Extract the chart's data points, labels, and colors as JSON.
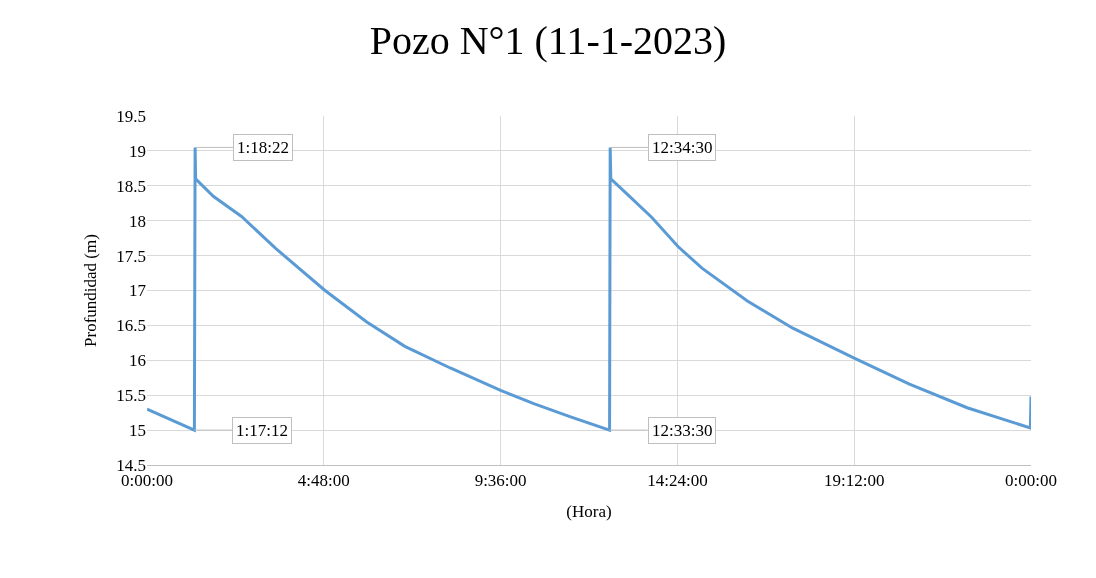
{
  "chart_data": {
    "type": "line",
    "title": "Pozo N°1 (11-1-2023)",
    "xlabel": "(Hora)",
    "ylabel": "Profundidad (m)",
    "series": [
      {
        "color": "#5b9bd5",
        "x": [
          "2023-01-11T00:00",
          "2023-01-11T01:17:12",
          "2023-01-11T01:18:22",
          "2023-01-11T01:19:12",
          "2023-01-11T01:48",
          "2023-01-11T02:34",
          "2023-01-11T03:30",
          "2023-01-11T04:50",
          "2023-01-11T05:58",
          "2023-01-11T07:00",
          "2023-01-11T08:14",
          "2023-01-11T09:36",
          "2023-01-11T10:30",
          "2023-01-11T11:30",
          "2023-01-11T12:33:30",
          "2023-01-11T12:34:30",
          "2023-01-11T12:35:30",
          "2023-01-11T13:00",
          "2023-01-11T13:42",
          "2023-01-11T14:25",
          "2023-01-11T15:04",
          "2023-01-11T16:18",
          "2023-01-11T17:32",
          "2023-01-11T19:12",
          "2023-01-11T20:42",
          "2023-01-11T22:16",
          "2023-01-11T23:59",
          "2023-01-12T00:00"
        ],
        "values": [
          15.3,
          15.0,
          19.05,
          18.6,
          18.35,
          18.06,
          17.6,
          17.0,
          16.55,
          16.2,
          15.89,
          15.57,
          15.38,
          15.19,
          15.0,
          19.05,
          18.6,
          18.4,
          18.05,
          17.63,
          17.32,
          16.85,
          16.46,
          16.03,
          15.66,
          15.32,
          15.03,
          15.48
        ]
      }
    ],
    "annotations": [
      {
        "text": "1:18:22",
        "x": "2023-01-11T01:18:22",
        "y": 19.05
      },
      {
        "text": "1:17:12",
        "x": "2023-01-11T01:17:12",
        "y": 15.0
      },
      {
        "text": "12:34:30",
        "x": "2023-01-11T12:34:30",
        "y": 19.05
      },
      {
        "text": "12:33:30",
        "x": "2023-01-11T12:33:30",
        "y": 15.0
      }
    ],
    "xlim": [
      "2023-01-11T00:00",
      "2023-01-12T00:00"
    ],
    "xticks": [
      {
        "value": "2023-01-11T00:00",
        "label": "0:00:00"
      },
      {
        "value": "2023-01-11T04:48",
        "label": "4:48:00"
      },
      {
        "value": "2023-01-11T09:36",
        "label": "9:36:00"
      },
      {
        "value": "2023-01-11T14:24",
        "label": "14:24:00"
      },
      {
        "value": "2023-01-11T19:12",
        "label": "19:12:00"
      },
      {
        "value": "2023-01-12T00:00",
        "label": "0:00:00"
      }
    ],
    "ylim": [
      14.5,
      19.5
    ],
    "yticks": [
      14.5,
      15,
      15.5,
      16,
      16.5,
      17,
      17.5,
      18,
      18.5,
      19,
      19.5
    ],
    "grid": true,
    "marker": "none",
    "line_style": "solid"
  }
}
